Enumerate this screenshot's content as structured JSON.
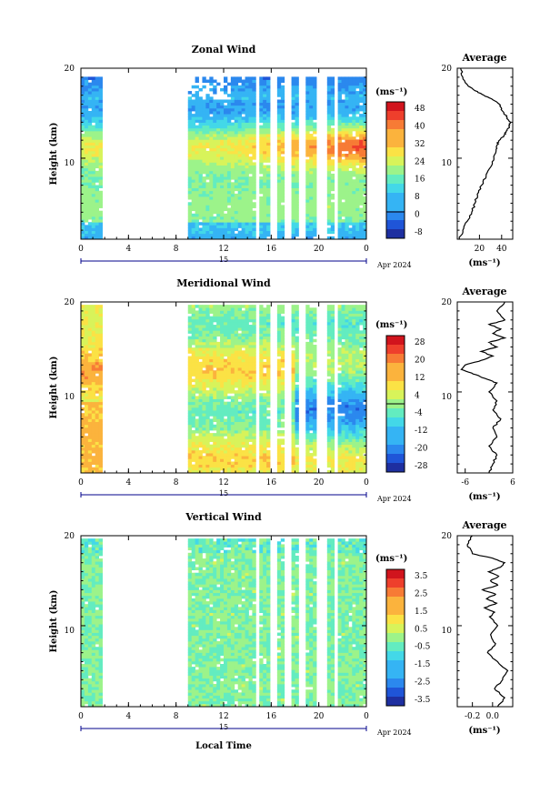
{
  "chart_data": [
    {
      "type": "heatmap",
      "title": "Zonal Wind",
      "ylabel": "Height (km)",
      "xlabel": "",
      "xticks": [
        "0",
        "4",
        "8",
        "12",
        "16",
        "20",
        "0"
      ],
      "yticks": [
        "20",
        "10"
      ],
      "ylim": [
        1,
        20
      ],
      "day_label": "15",
      "date_label": "Apr 2024",
      "colorbar": {
        "unit": "(ms⁻¹)",
        "ticks": [
          "48",
          "40",
          "32",
          "24",
          "16",
          "8",
          "0",
          "-8"
        ],
        "range": [
          -8,
          52
        ]
      },
      "profile": {
        "title": "Average",
        "xticks": [
          "20",
          "40"
        ],
        "xunit": "(ms⁻¹)",
        "xlim": [
          0,
          50
        ],
        "x": [
          2,
          5,
          9,
          13,
          16,
          18,
          22,
          26,
          30,
          33,
          35,
          36,
          38,
          42,
          44,
          47,
          48,
          45,
          42,
          40,
          38,
          32,
          24,
          16,
          10,
          5,
          3
        ],
        "y": [
          1,
          2,
          3,
          4,
          5,
          6,
          7,
          8,
          9,
          10,
          11,
          11.5,
          12,
          12.5,
          13,
          13.5,
          14,
          14.5,
          15,
          15.5,
          16,
          16.5,
          17,
          17.5,
          18,
          19,
          20
        ]
      }
    },
    {
      "type": "heatmap",
      "title": "Meridional Wind",
      "ylabel": "Height (km)",
      "xlabel": "",
      "xticks": [
        "0",
        "4",
        "8",
        "12",
        "16",
        "20",
        "0"
      ],
      "yticks": [
        "20",
        "10"
      ],
      "ylim": [
        1,
        20
      ],
      "day_label": "15",
      "date_label": "Apr 2024",
      "colorbar": {
        "unit": "(ms⁻¹)",
        "ticks": [
          "28",
          "20",
          "12",
          "4",
          "-4",
          "-12",
          "-20",
          "-28"
        ],
        "range": [
          -32,
          32
        ]
      },
      "profile": {
        "title": "Average",
        "xticks": [
          "-6",
          "6"
        ],
        "xunit": "(ms⁻¹)",
        "xlim": [
          -8,
          6
        ],
        "x": [
          0,
          1,
          2,
          0,
          2,
          1,
          3,
          1,
          2,
          0,
          2,
          -1,
          -4,
          -7,
          -6,
          -2,
          1,
          -2,
          2,
          0,
          4,
          1,
          3,
          0,
          4,
          2,
          4
        ],
        "y": [
          1,
          2,
          3,
          4,
          5,
          6,
          7,
          8,
          9,
          10,
          11,
          11.5,
          12,
          12.5,
          13,
          13.5,
          14,
          14.5,
          15,
          15.5,
          16,
          16.5,
          17,
          17.5,
          18,
          19,
          20
        ]
      }
    },
    {
      "type": "heatmap",
      "title": "Vertical Wind",
      "ylabel": "Height (km)",
      "xlabel": "Local Time",
      "xticks": [
        "0",
        "4",
        "8",
        "12",
        "16",
        "20",
        "0"
      ],
      "yticks": [
        "20",
        "10"
      ],
      "ylim": [
        1,
        20
      ],
      "day_label": "15",
      "date_label": "Apr 2024",
      "colorbar": {
        "unit": "(ms⁻¹)",
        "ticks": [
          "3.5",
          "2.5",
          "1.5",
          "0.5",
          "-0.5",
          "-1.5",
          "-2.5",
          "-3.5"
        ],
        "range": [
          -4,
          4
        ]
      },
      "profile": {
        "title": "Average",
        "xticks": [
          "-0.2",
          "0.0"
        ],
        "xunit": "(ms⁻¹)",
        "xlim": [
          -0.35,
          0.2
        ],
        "x": [
          0.05,
          0.12,
          0.02,
          0.1,
          0.15,
          0.05,
          -0.05,
          0.03,
          -0.02,
          0.05,
          -0.03,
          0.02,
          -0.08,
          0.04,
          -0.06,
          0.03,
          -0.1,
          0.05,
          -0.02,
          0.06,
          -0.04,
          0.08,
          0.12,
          0.0,
          -0.2,
          -0.25,
          -0.2
        ],
        "y": [
          1,
          2,
          3,
          4,
          5,
          6,
          7,
          8,
          9,
          10,
          11,
          11.5,
          12,
          12.5,
          13,
          13.5,
          14,
          14.5,
          15,
          15.5,
          16,
          16.5,
          17,
          17.5,
          18,
          19,
          20
        ]
      }
    }
  ]
}
